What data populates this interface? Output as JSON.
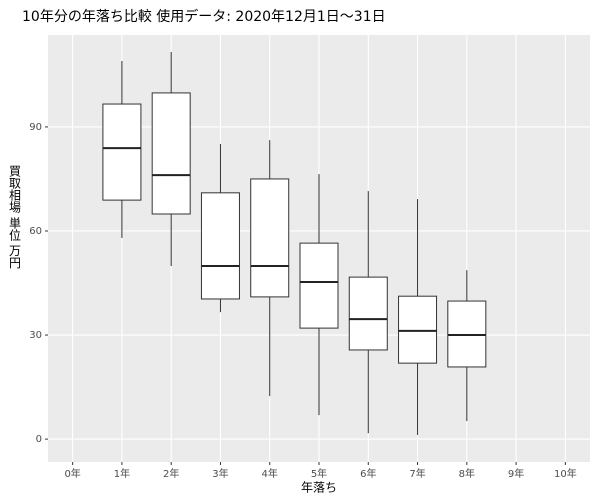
{
  "chart_data": {
    "type": "box",
    "title": "10年分の年落ち比較 使用データ: 2020年12月1日～31日",
    "x_label": "年落ち",
    "y_label": "買取相場 単位 万円",
    "categories": [
      "0年",
      "1年",
      "2年",
      "3年",
      "4年",
      "5年",
      "6年",
      "7年",
      "8年",
      "9年",
      "10年"
    ],
    "low": [
      null,
      58,
      49.9,
      36.6,
      12.4,
      6.9,
      1.7,
      1.2,
      5.2,
      null,
      null
    ],
    "q1": [
      null,
      68.9,
      64.9,
      40.4,
      41,
      32,
      25.7,
      21.9,
      20.8,
      null,
      null
    ],
    "median": [
      null,
      83.9,
      76.1,
      49.9,
      49.9,
      45.3,
      34.6,
      31.2,
      30,
      null,
      null
    ],
    "q3": [
      null,
      96.6,
      99.8,
      71,
      75,
      56.5,
      46.7,
      41.2,
      39.8,
      null,
      null
    ],
    "high": [
      null,
      109,
      111.6,
      85.1,
      86.2,
      76.4,
      71.5,
      69.2,
      48.7,
      null,
      null
    ],
    "color": "#ffffff",
    "ylim": [
      -6.6,
      116.5
    ],
    "yticks": [
      0,
      30,
      60,
      90
    ],
    "grid": true
  }
}
